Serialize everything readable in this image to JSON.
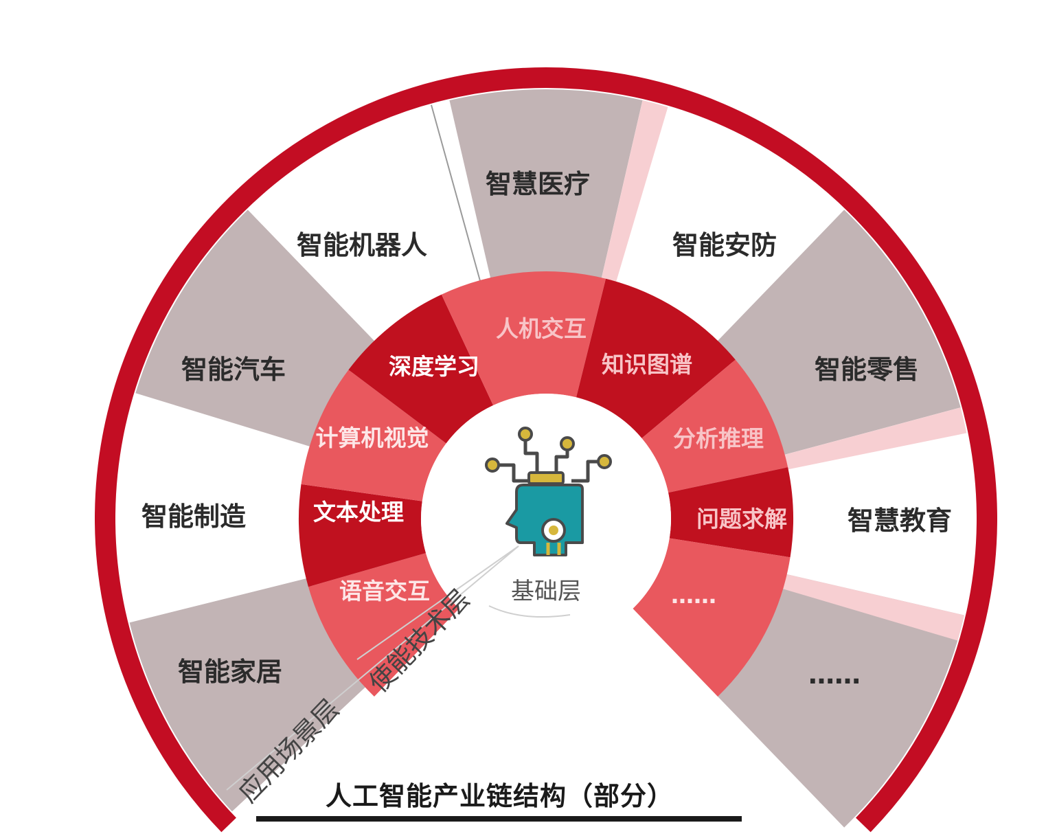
{
  "title": "人工智能产业链结构（部分）",
  "layers": {
    "application": "应用场景层",
    "technology": "使能技术层",
    "foundation": "基础层"
  },
  "application_scenarios": [
    "智能家居",
    "智能制造",
    "智能汽车",
    "智能机器人",
    "智慧医疗",
    "智能安防",
    "智能零售",
    "智慧教育",
    "……"
  ],
  "enabling_technologies": [
    "语音交互",
    "文本处理",
    "计算机视觉",
    "深度学习",
    "人机交互",
    "知识图谱",
    "分析推理",
    "问题求解",
    "……"
  ],
  "colors": {
    "ring_red": "#c30d23",
    "dark_red": "#c0111f",
    "mid_red": "#de3840",
    "light_red": "#e9585e",
    "grey_sector": "#c2b4b5",
    "pink_stripe": "#f7cfd2",
    "head_teal": "#1a9aa3",
    "circuit_gold": "#d6b73c",
    "circuit_line": "#4a4a4a"
  },
  "icon": "ai-head-circuit-icon"
}
